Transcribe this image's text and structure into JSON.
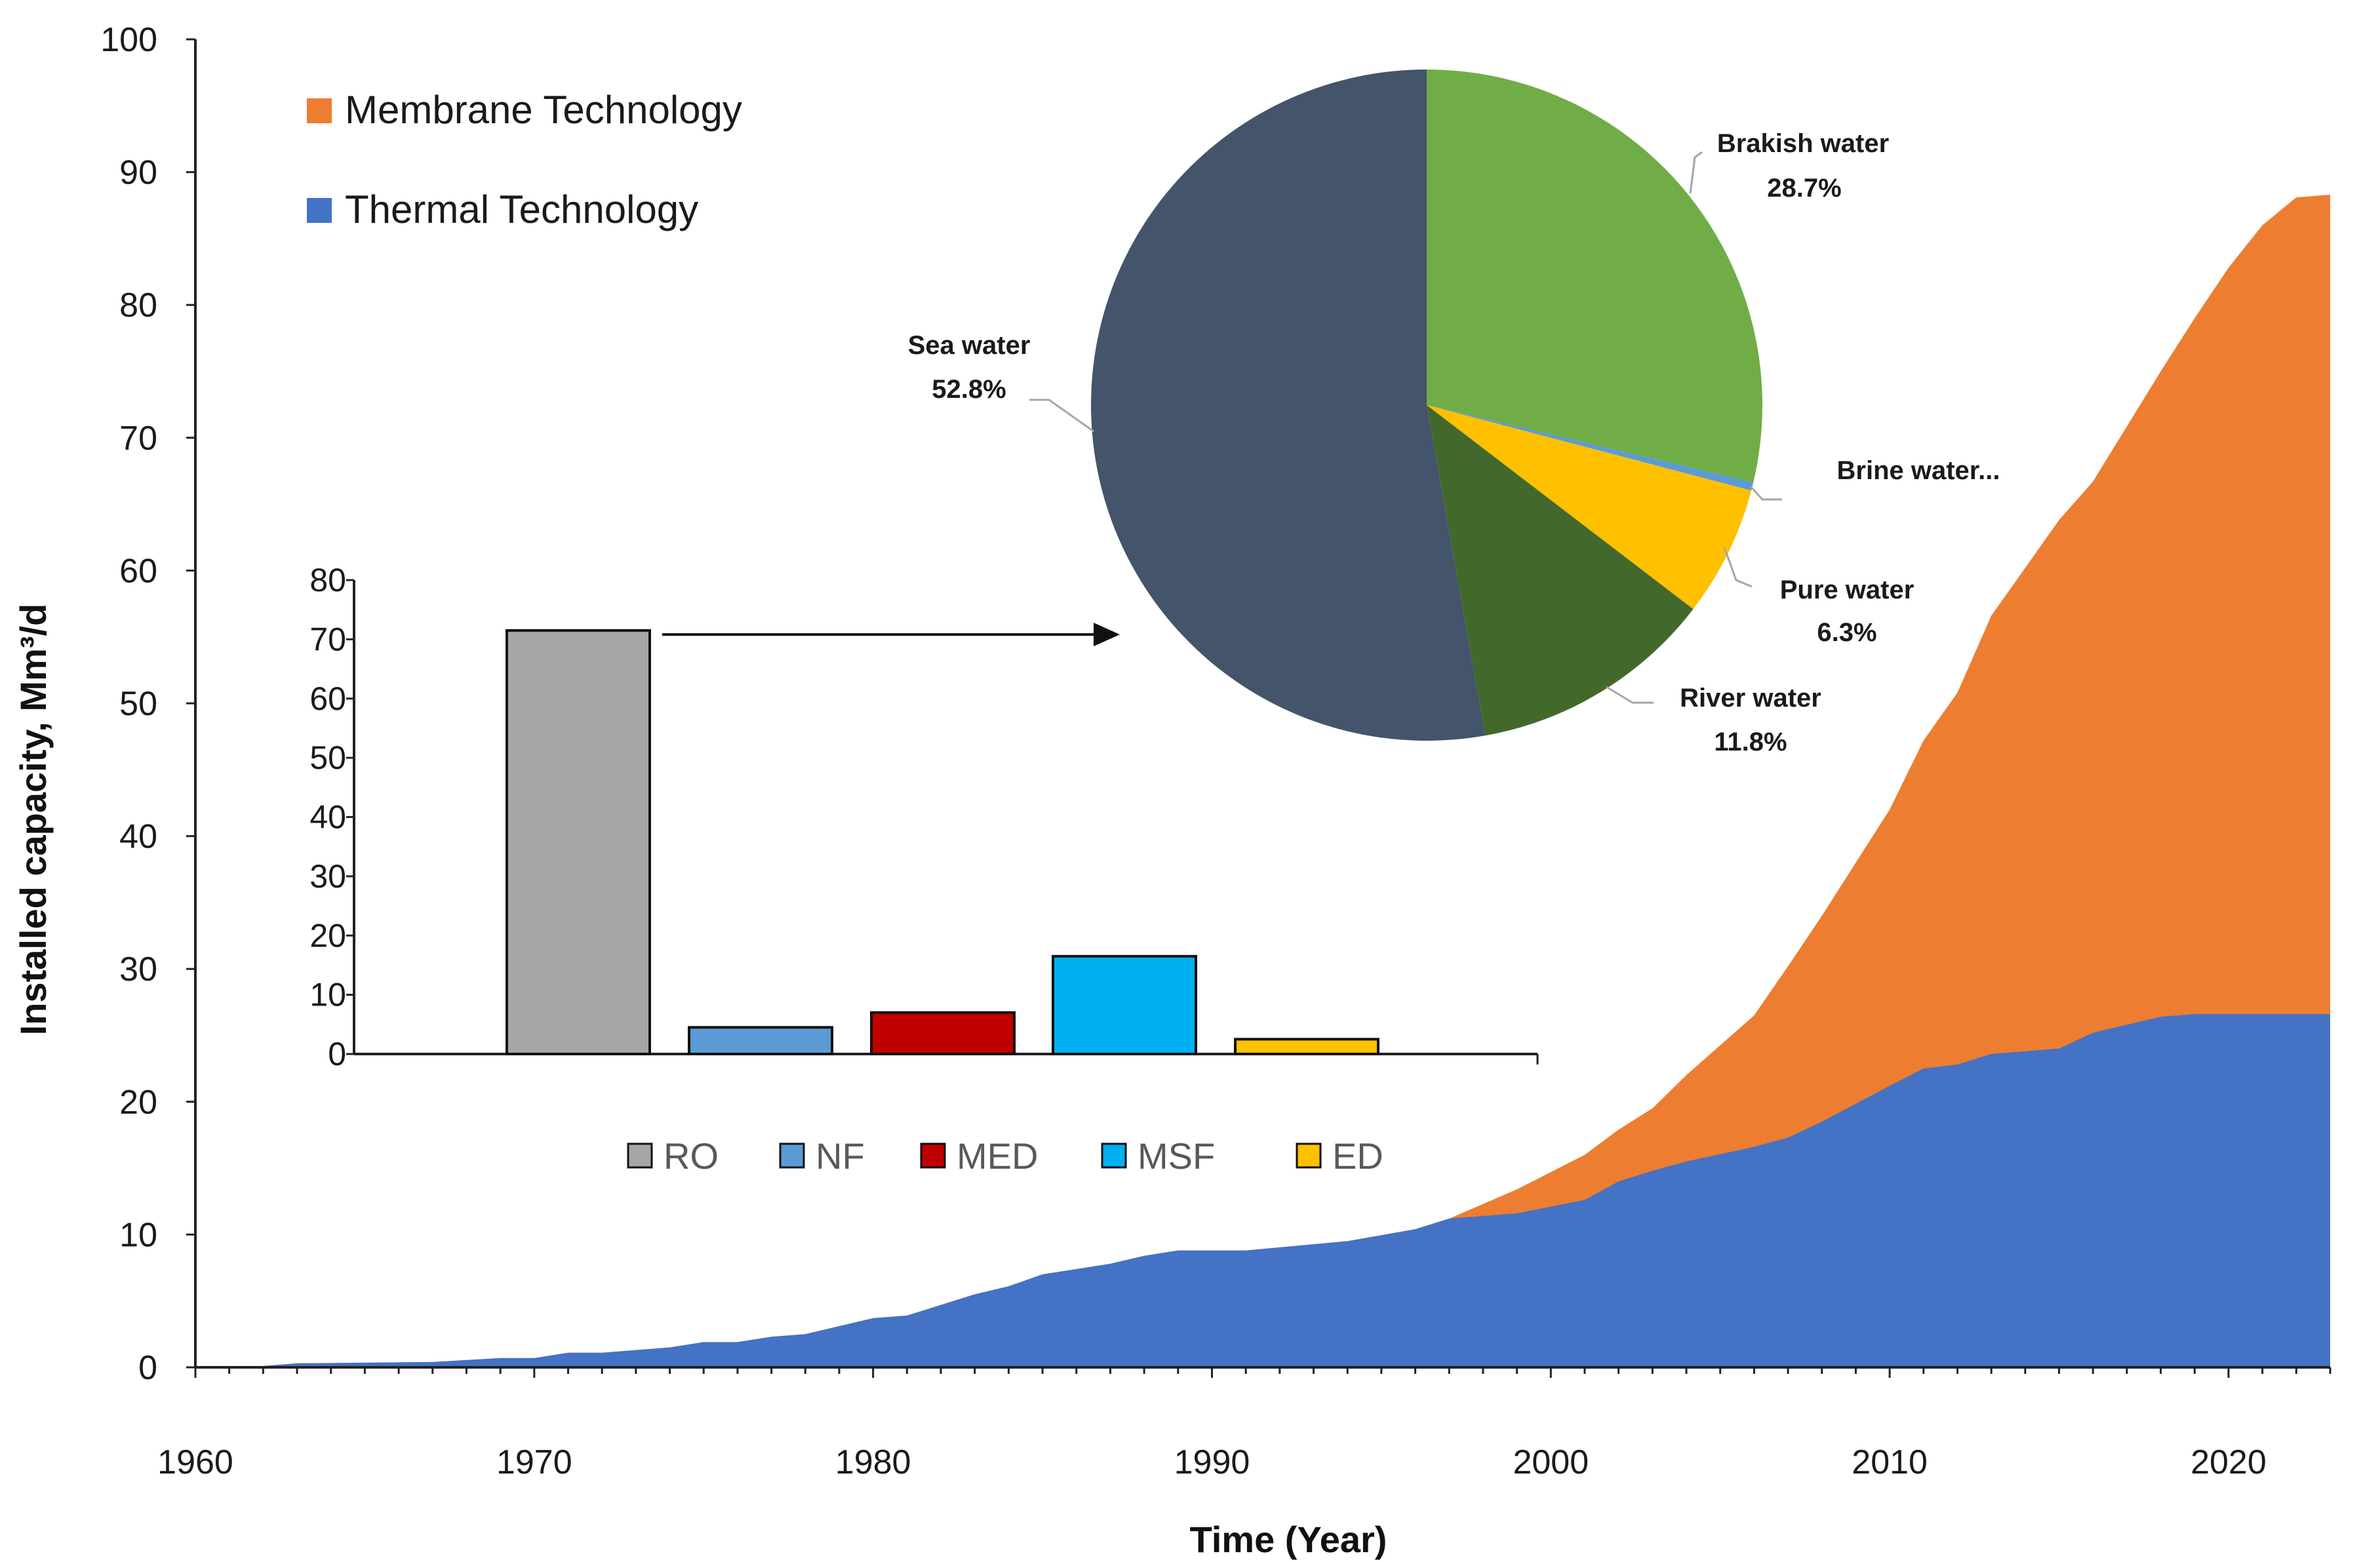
{
  "colors": {
    "membrane": "#ED7D31",
    "thermal": "#4472C4",
    "axis": "#222222",
    "arrow": "#111111",
    "leader": "#A6A6A6"
  },
  "chart_data": [
    {
      "id": "main",
      "type": "area",
      "stacked": true,
      "title": "",
      "xlabel": "Time (Year)",
      "ylabel": "Installed capacity, Mm³/d",
      "xlim": [
        1960,
        2023
      ],
      "ylim": [
        0,
        100
      ],
      "x_ticks": [
        1960,
        1970,
        1980,
        1990,
        2000,
        2010,
        2020
      ],
      "y_ticks": [
        0,
        10,
        20,
        30,
        40,
        50,
        60,
        70,
        80,
        90,
        100
      ],
      "legend_position": "top-left",
      "series": [
        {
          "name": "Thermal Technology",
          "color": "#4472C4",
          "x": [
            1962,
            1963,
            1967,
            1969,
            1970,
            1971,
            1972,
            1974,
            1975,
            1976,
            1977,
            1978,
            1980,
            1981,
            1983,
            1984,
            1985,
            1987,
            1988,
            1989,
            1991,
            1994,
            1996,
            1997,
            1999,
            2001,
            2002,
            2003,
            2004,
            2006,
            2007,
            2008,
            2010,
            2011,
            2012,
            2013,
            2015,
            2016,
            2018,
            2019,
            2020,
            2021,
            2022,
            2023
          ],
          "values": [
            0.1,
            0.3,
            0.4,
            0.7,
            0.7,
            1.1,
            1.1,
            1.5,
            1.9,
            1.9,
            2.3,
            2.5,
            3.7,
            3.9,
            5.5,
            6.1,
            7.0,
            7.8,
            8.4,
            8.8,
            8.8,
            9.5,
            10.4,
            11.2,
            11.6,
            12.6,
            14.0,
            14.8,
            15.5,
            16.6,
            17.3,
            18.5,
            21.2,
            22.5,
            22.8,
            23.6,
            24.0,
            25.2,
            26.4,
            26.6,
            26.6,
            26.6,
            26.6,
            26.6
          ]
        },
        {
          "name": "Membrane Technology",
          "color": "#ED7D31",
          "x": [
            1962,
            1963,
            1967,
            1969,
            1970,
            1971,
            1972,
            1974,
            1975,
            1976,
            1977,
            1978,
            1980,
            1981,
            1983,
            1984,
            1985,
            1987,
            1988,
            1989,
            1991,
            1994,
            1996,
            1997,
            1999,
            2001,
            2002,
            2003,
            2004,
            2006,
            2007,
            2008,
            2010,
            2011,
            2012,
            2013,
            2015,
            2016,
            2018,
            2019,
            2020,
            2021,
            2022,
            2023
          ],
          "values": [
            0,
            0,
            0,
            0,
            0,
            0,
            0,
            0,
            0,
            0,
            0,
            0,
            0,
            0,
            0,
            0,
            0,
            0,
            0,
            0,
            0,
            0,
            0,
            0,
            1.8,
            3.4,
            3.9,
            4.7,
            6.5,
            9.9,
            12.9,
            15.5,
            20.8,
            24.7,
            28.0,
            33.0,
            39.8,
            41.5,
            48.6,
            52.4,
            56.2,
            59.4,
            61.5,
            61.7
          ]
        }
      ]
    },
    {
      "id": "inset-bar",
      "type": "bar",
      "title": "",
      "xlabel": "",
      "ylabel": "",
      "ylim": [
        0,
        80
      ],
      "y_ticks": [
        0,
        10,
        20,
        30,
        40,
        50,
        60,
        70,
        80
      ],
      "categories": [
        "RO",
        "NF",
        "MED",
        "MSF",
        "ED"
      ],
      "values": [
        71.5,
        4.5,
        7,
        16.5,
        2.5
      ],
      "colors": [
        "#A6A6A6",
        "#5B9BD5",
        "#C00000",
        "#00B0F0",
        "#FFC000"
      ],
      "legend_position": "bottom"
    },
    {
      "id": "inset-pie",
      "type": "pie",
      "title": "",
      "slices": [
        {
          "label": "Brakish water",
          "value_label": "28.7%",
          "value": 28.7,
          "color": "#70AD47"
        },
        {
          "label": "Brine water...",
          "value_label": "",
          "value": 0.4,
          "color": "#5B9BD5"
        },
        {
          "label": "Pure water",
          "value_label": "6.3%",
          "value": 6.3,
          "color": "#FFC000"
        },
        {
          "label": "River water",
          "value_label": "11.8%",
          "value": 11.8,
          "color": "#43682B"
        },
        {
          "label": "Sea water",
          "value_label": "52.8%",
          "value": 52.8,
          "color": "#44546A"
        }
      ]
    }
  ]
}
